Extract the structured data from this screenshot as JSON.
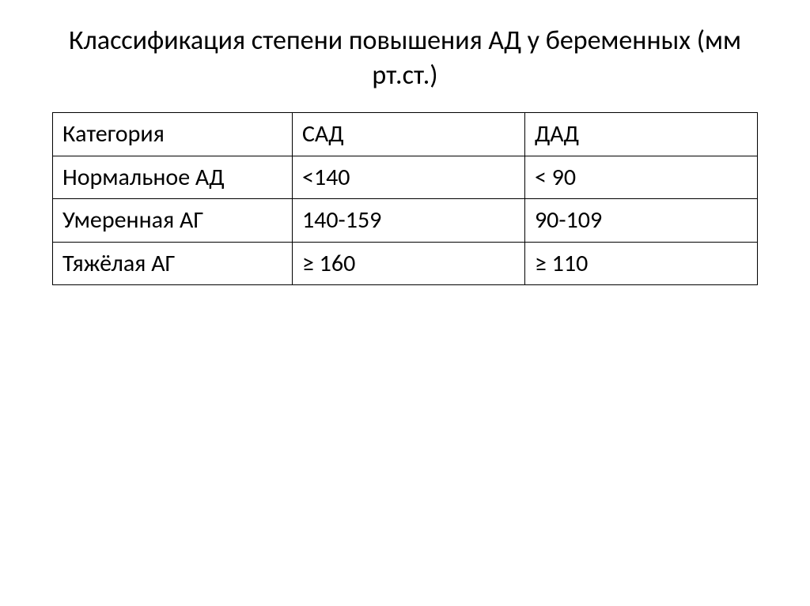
{
  "title": "Классификация степени повышения АД у беременных (мм рт.ст.)",
  "table": {
    "columns": [
      "Категория",
      "САД",
      "ДАД"
    ],
    "rows": [
      [
        "Нормальное АД",
        "<140",
        "< 90"
      ],
      [
        "Умеренная АГ",
        "140-159",
        "90-109"
      ],
      [
        "Тяжёлая АГ",
        "≥ 160",
        "≥ 110"
      ]
    ],
    "border_color": "#000000",
    "background_color": "#ffffff",
    "text_color": "#000000",
    "title_fontsize": 34,
    "cell_fontsize": 30
  }
}
